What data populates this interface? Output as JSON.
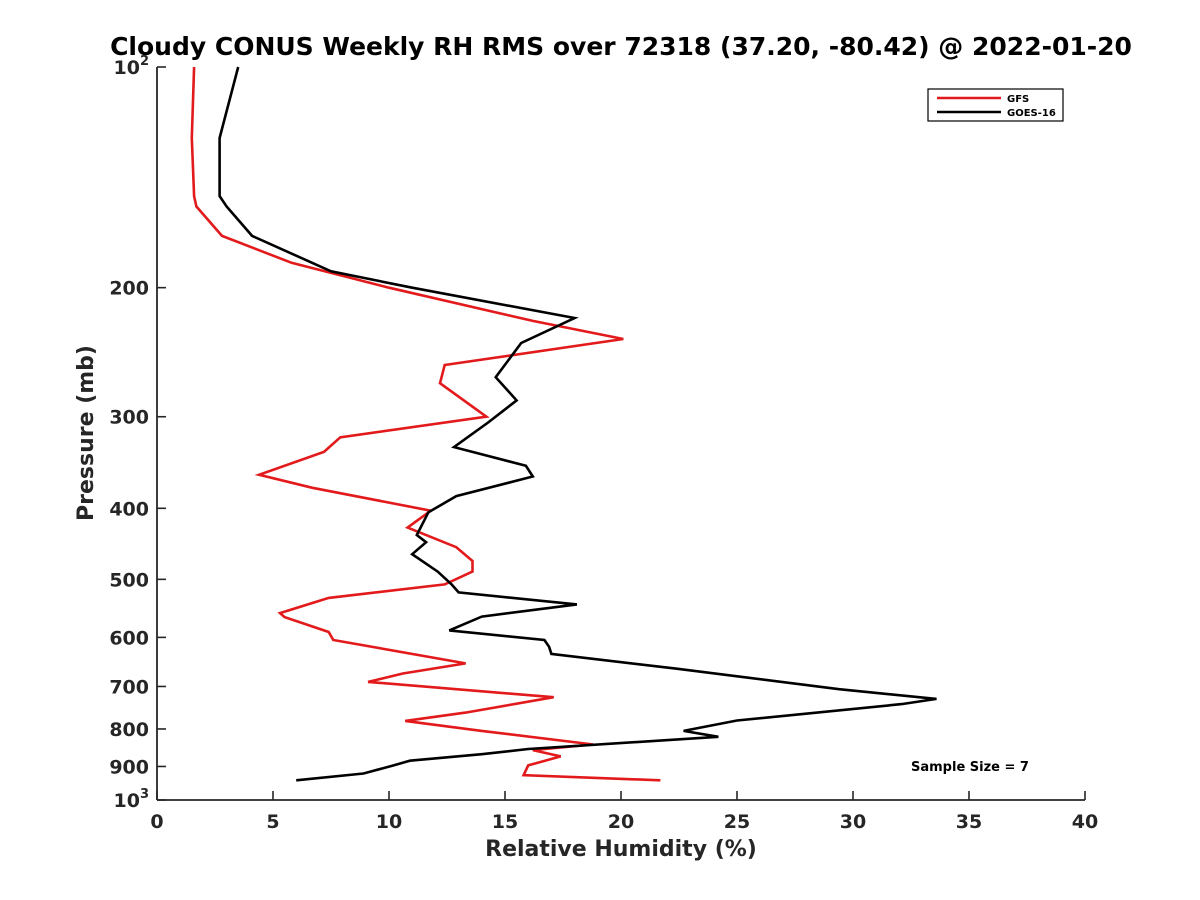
{
  "chart_data": {
    "type": "line",
    "title": "Cloudy CONUS Weekly RH RMS over 72318 (37.20, -80.42) @ 2022-01-20",
    "xlabel": "Relative Humidity (%)",
    "ylabel": "Pressure (mb)",
    "xlim": [
      0,
      40
    ],
    "ylim": [
      100,
      1000
    ],
    "y_scale": "log",
    "y_reversed": true,
    "grid": false,
    "x_ticks": [
      0,
      5,
      10,
      15,
      20,
      25,
      30,
      35,
      40
    ],
    "x_tick_labels": [
      "0",
      "5",
      "10",
      "15",
      "20",
      "25",
      "30",
      "35",
      "40"
    ],
    "y_ticks": [
      100,
      200,
      300,
      400,
      500,
      600,
      700,
      800,
      900,
      1000
    ],
    "y_tick_labels": [
      {
        "base": "10",
        "exp": "2"
      },
      {
        "base": "200",
        "exp": ""
      },
      {
        "base": "300",
        "exp": ""
      },
      {
        "base": "400",
        "exp": ""
      },
      {
        "base": "500",
        "exp": ""
      },
      {
        "base": "600",
        "exp": ""
      },
      {
        "base": "700",
        "exp": ""
      },
      {
        "base": "800",
        "exp": ""
      },
      {
        "base": "900",
        "exp": ""
      },
      {
        "base": "10",
        "exp": "3"
      }
    ],
    "legend_position": "top-right",
    "annotation": "Sample Size = 7",
    "series": [
      {
        "name": "GFS",
        "color": "#e31a1c",
        "points": [
          [
            1.6,
            100
          ],
          [
            1.5,
            125
          ],
          [
            1.6,
            150
          ],
          [
            1.7,
            155
          ],
          [
            2.8,
            170
          ],
          [
            5.8,
            185
          ],
          [
            10.0,
            200
          ],
          [
            16.2,
            222
          ],
          [
            20.1,
            235
          ],
          [
            12.4,
            255
          ],
          [
            12.2,
            270
          ],
          [
            14.2,
            300
          ],
          [
            7.9,
            320
          ],
          [
            7.2,
            335
          ],
          [
            4.4,
            360
          ],
          [
            6.7,
            375
          ],
          [
            11.8,
            403
          ],
          [
            10.8,
            425
          ],
          [
            12.9,
            452
          ],
          [
            13.6,
            472
          ],
          [
            13.6,
            488
          ],
          [
            12.4,
            508
          ],
          [
            7.4,
            530
          ],
          [
            5.3,
            556
          ],
          [
            5.5,
            563
          ],
          [
            7.4,
            590
          ],
          [
            7.6,
            605
          ],
          [
            13.3,
            651
          ],
          [
            10.6,
            672
          ],
          [
            9.1,
            690
          ],
          [
            17.1,
            724
          ],
          [
            13.3,
            760
          ],
          [
            10.7,
            780
          ],
          [
            14.0,
            805
          ],
          [
            18.8,
            840
          ],
          [
            16.2,
            855
          ],
          [
            17.4,
            872
          ],
          [
            16.0,
            897
          ],
          [
            15.8,
            925
          ],
          [
            21.7,
            940
          ]
        ]
      },
      {
        "name": "GOES-16",
        "color": "#000000",
        "points": [
          [
            3.5,
            100
          ],
          [
            2.7,
            125
          ],
          [
            2.7,
            150
          ],
          [
            3.0,
            155
          ],
          [
            4.1,
            170
          ],
          [
            7.5,
            190
          ],
          [
            11.0,
            200
          ],
          [
            18.0,
            220
          ],
          [
            15.7,
            238
          ],
          [
            14.6,
            265
          ],
          [
            15.5,
            285
          ],
          [
            14.3,
            305
          ],
          [
            12.8,
            330
          ],
          [
            15.9,
            350
          ],
          [
            16.2,
            362
          ],
          [
            12.9,
            385
          ],
          [
            11.7,
            405
          ],
          [
            11.2,
            435
          ],
          [
            11.6,
            445
          ],
          [
            11.0,
            462
          ],
          [
            12.1,
            488
          ],
          [
            12.7,
            508
          ],
          [
            13.0,
            521
          ],
          [
            18.1,
            541
          ],
          [
            14.0,
            562
          ],
          [
            12.6,
            587
          ],
          [
            16.7,
            605
          ],
          [
            16.9,
            618
          ],
          [
            17.0,
            632
          ],
          [
            22.4,
            662
          ],
          [
            29.4,
            706
          ],
          [
            33.6,
            728
          ],
          [
            32.1,
            740
          ],
          [
            25.0,
            779
          ],
          [
            22.7,
            805
          ],
          [
            24.2,
            820
          ],
          [
            16.0,
            852
          ],
          [
            14.0,
            866
          ],
          [
            10.9,
            884
          ],
          [
            10.2,
            897
          ],
          [
            8.9,
            920
          ],
          [
            6.0,
            940
          ]
        ]
      }
    ]
  }
}
